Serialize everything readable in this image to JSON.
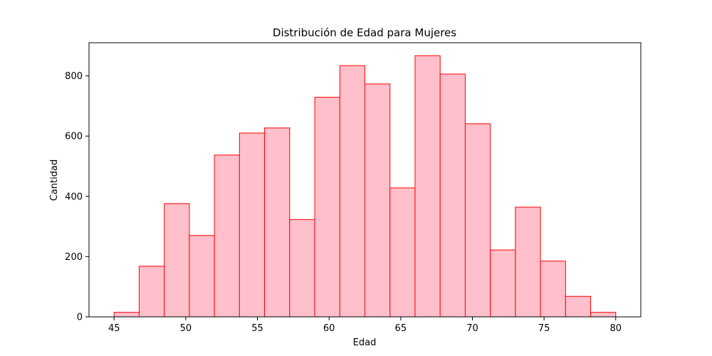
{
  "chart_data": {
    "type": "bar",
    "title": "Distribución de Edad para Mujeres",
    "xlabel": "Edad",
    "ylabel": "Cantidad",
    "xlim": [
      43.25,
      81.75
    ],
    "ylim": [
      0,
      910
    ],
    "x_ticks": [
      45,
      50,
      55,
      60,
      65,
      70,
      75,
      80
    ],
    "y_ticks": [
      0,
      200,
      400,
      600,
      800
    ],
    "bin_edges": [
      45,
      46.75,
      48.5,
      50.25,
      52,
      53.75,
      55.5,
      57.25,
      59,
      60.75,
      62.5,
      64.25,
      66,
      67.75,
      69.5,
      71.25,
      73,
      74.75,
      76.5,
      78.25,
      80
    ],
    "values": [
      15,
      168,
      376,
      270,
      537,
      610,
      627,
      323,
      729,
      834,
      773,
      428,
      867,
      806,
      641,
      222,
      364,
      185,
      68,
      15
    ],
    "grid": false,
    "bar_fill": "#ffc0cb",
    "bar_edge": "#ff0000"
  }
}
